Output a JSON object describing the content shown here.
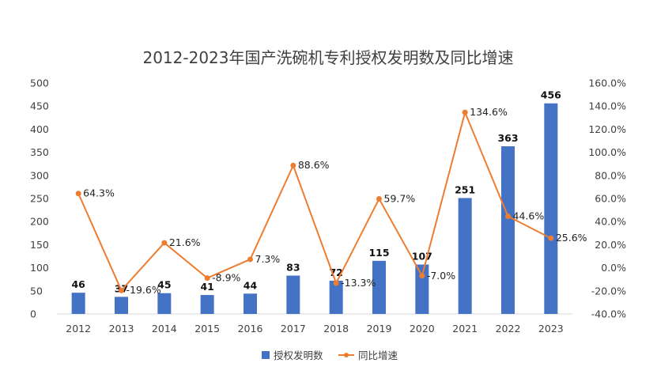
{
  "chart_data": {
    "type": "bar",
    "title": "2012-2023年国产洗碗机专利授权发明数及同比增速",
    "categories": [
      "2012",
      "2013",
      "2014",
      "2015",
      "2016",
      "2017",
      "2018",
      "2019",
      "2020",
      "2021",
      "2022",
      "2023"
    ],
    "series": [
      {
        "name": "授权发明数",
        "type": "bar",
        "axis": "left",
        "color": "#4472C4",
        "values": [
          46,
          37,
          45,
          41,
          44,
          83,
          72,
          115,
          107,
          251,
          363,
          456
        ],
        "labels": [
          "46",
          "37",
          "45",
          "41",
          "44",
          "83",
          "72",
          "115",
          "107",
          "251",
          "363",
          "456"
        ]
      },
      {
        "name": "同比增速",
        "type": "line",
        "axis": "right",
        "color": "#ED7D31",
        "values": [
          64.3,
          -19.6,
          21.6,
          -8.9,
          7.3,
          88.6,
          -13.3,
          59.7,
          -7.0,
          134.6,
          44.6,
          25.6
        ],
        "labels": [
          "64.3%",
          "-19.6%",
          "21.6%",
          "-8.9%",
          "7.3%",
          "88.6%",
          "-13.3%",
          "59.7%",
          "-7.0%",
          "134.6%",
          "44.6%",
          "25.6%"
        ]
      }
    ],
    "y_left": {
      "min": 0,
      "max": 500,
      "ticks": [
        "0",
        "50",
        "100",
        "150",
        "200",
        "250",
        "300",
        "350",
        "400",
        "450",
        "500"
      ]
    },
    "y_right": {
      "min": -40,
      "max": 160,
      "ticks": [
        "-40.0%",
        "-20.0%",
        "0.0%",
        "20.0%",
        "40.0%",
        "60.0%",
        "80.0%",
        "100.0%",
        "120.0%",
        "140.0%",
        "160.0%"
      ]
    },
    "grid": false,
    "legend_position": "bottom"
  }
}
